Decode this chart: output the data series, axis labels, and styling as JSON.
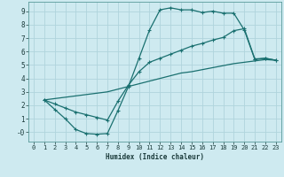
{
  "xlabel": "Humidex (Indice chaleur)",
  "bg_color": "#ceeaf0",
  "grid_color": "#b0d4dc",
  "line_color": "#1a7070",
  "xlim": [
    -0.5,
    23.5
  ],
  "ylim": [
    -0.7,
    9.7
  ],
  "xticks": [
    0,
    1,
    2,
    3,
    4,
    5,
    6,
    7,
    8,
    9,
    10,
    11,
    12,
    13,
    14,
    15,
    16,
    17,
    18,
    19,
    20,
    21,
    22,
    23
  ],
  "yticks": [
    0,
    1,
    2,
    3,
    4,
    5,
    6,
    7,
    8,
    9
  ],
  "ytick_labels": [
    "-0",
    "1",
    "2",
    "3",
    "4",
    "5",
    "6",
    "7",
    "8",
    "9"
  ],
  "curve1_x": [
    1,
    2,
    3,
    4,
    5,
    6,
    7,
    8,
    9,
    10,
    11,
    12,
    13,
    14,
    15,
    16,
    17,
    18,
    19,
    20,
    21,
    22,
    23
  ],
  "curve1_y": [
    2.4,
    1.7,
    1.0,
    0.2,
    -0.1,
    -0.15,
    -0.1,
    1.6,
    3.4,
    5.5,
    7.6,
    9.1,
    9.25,
    9.1,
    9.1,
    8.9,
    9.0,
    8.85,
    8.85,
    7.6,
    5.4,
    5.5,
    5.35
  ],
  "curve2_x": [
    1,
    2,
    3,
    4,
    5,
    6,
    7,
    8,
    9,
    10,
    11,
    12,
    13,
    14,
    15,
    16,
    17,
    18,
    19,
    20,
    21,
    22,
    23
  ],
  "curve2_y": [
    2.4,
    2.1,
    1.8,
    1.5,
    1.3,
    1.1,
    0.9,
    2.3,
    3.5,
    4.5,
    5.2,
    5.5,
    5.8,
    6.1,
    6.4,
    6.6,
    6.85,
    7.05,
    7.55,
    7.7,
    5.45,
    5.5,
    5.35
  ],
  "curve3_x": [
    1,
    2,
    3,
    4,
    5,
    6,
    7,
    8,
    9,
    10,
    11,
    12,
    13,
    14,
    15,
    16,
    17,
    18,
    19,
    20,
    21,
    22,
    23
  ],
  "curve3_y": [
    2.4,
    2.5,
    2.6,
    2.7,
    2.8,
    2.9,
    3.0,
    3.2,
    3.4,
    3.6,
    3.8,
    4.0,
    4.2,
    4.4,
    4.5,
    4.65,
    4.8,
    4.95,
    5.1,
    5.2,
    5.3,
    5.4,
    5.35
  ]
}
